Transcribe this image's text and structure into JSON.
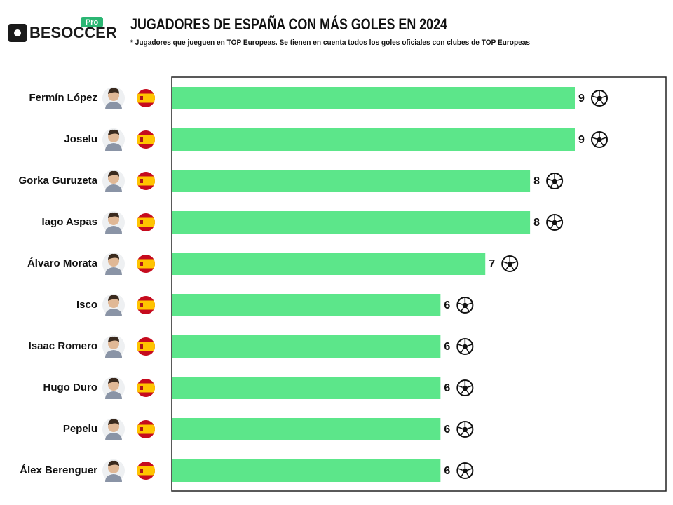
{
  "logo": {
    "brand": "BESOCCER",
    "badge": "Pro"
  },
  "chart_data": {
    "type": "bar",
    "orientation": "horizontal",
    "title": "JUGADORES DE ESPAÑA CON MÁS GOLES EN 2024",
    "subtitle": "* Jugadores que jueguen en TOP Europeas. Se tienen en cuenta todos los goles oficiales con clubes de TOP Europeas",
    "categories": [
      "Fermín López",
      "Joselu",
      "Gorka Guruzeta",
      "Iago Aspas",
      "Álvaro Morata",
      "Isco",
      "Isaac Romero",
      "Hugo Duro",
      "Pepelu",
      "Álex Berenguer"
    ],
    "values": [
      9,
      9,
      8,
      8,
      7,
      6,
      6,
      6,
      6,
      6
    ],
    "color": "#5ce68a"
  }
}
